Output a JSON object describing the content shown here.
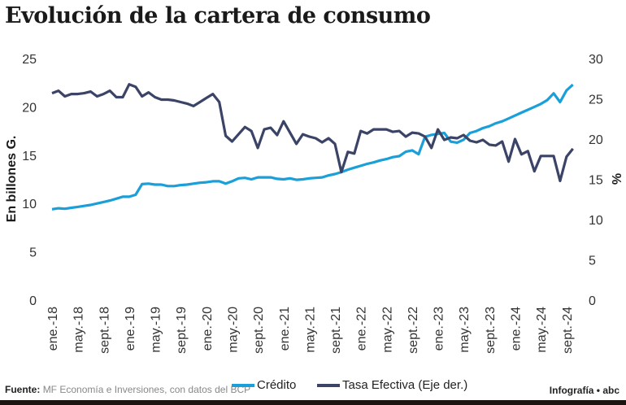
{
  "title": "Evolución de la cartera de consumo",
  "footer": {
    "source_label": "Fuente:",
    "source_text": "MF Economía e Inversiones, con datos del BCP",
    "credit": "Infografía • abc"
  },
  "chart_data": {
    "type": "line",
    "title": "Evolución de la cartera de consumo",
    "ylabel": "En billones G.",
    "ylabel_right": "%",
    "ylim": [
      0,
      25
    ],
    "ylim_right": [
      0,
      30
    ],
    "yticks": [
      "0",
      "5",
      "10",
      "15",
      "20",
      "25"
    ],
    "yticks_right": [
      "0",
      "5",
      "10",
      "15",
      "20",
      "25",
      "30"
    ],
    "x_tick_labels": [
      "ene.-18",
      "may.-18",
      "sept.-18",
      "ene.-19",
      "may.-19",
      "sept.-19",
      "ene.-20",
      "may.-20",
      "sept.-20",
      "ene.-21",
      "may.-21",
      "sept.-21",
      "ene.-22",
      "may.-22",
      "sept.-22",
      "ene.-23",
      "may.-23",
      "sept.-23",
      "ene.-24",
      "may.-24",
      "sept.-24"
    ],
    "x_tick_every_months": 4,
    "grid": false,
    "legend_position": "bottom",
    "series": [
      {
        "name": "Crédito",
        "axis": "left",
        "color": "#1a9fd9",
        "values": [
          9.4,
          9.5,
          9.45,
          9.55,
          9.65,
          9.75,
          9.85,
          10.0,
          10.15,
          10.3,
          10.5,
          10.7,
          10.7,
          10.9,
          12.0,
          12.05,
          11.95,
          11.95,
          11.8,
          11.8,
          11.9,
          11.95,
          12.05,
          12.15,
          12.2,
          12.3,
          12.3,
          12.05,
          12.3,
          12.6,
          12.65,
          12.5,
          12.7,
          12.7,
          12.7,
          12.55,
          12.5,
          12.6,
          12.45,
          12.5,
          12.6,
          12.65,
          12.7,
          12.9,
          13.05,
          13.25,
          13.5,
          13.7,
          13.9,
          14.1,
          14.25,
          14.45,
          14.6,
          14.8,
          14.9,
          15.35,
          15.5,
          15.1,
          16.9,
          17.1,
          17.2,
          17.3,
          16.4,
          16.3,
          16.6,
          17.3,
          17.5,
          17.8,
          18.0,
          18.3,
          18.5,
          18.8,
          19.1,
          19.4,
          19.7,
          20.0,
          20.3,
          20.7,
          21.4,
          20.5,
          21.7,
          22.3
        ]
      },
      {
        "name": "Tasa Efectiva (Eje der.)",
        "axis": "right",
        "color": "#3b4466",
        "values": [
          25.7,
          26.0,
          25.3,
          25.6,
          25.6,
          25.7,
          25.9,
          25.3,
          25.6,
          26.0,
          25.2,
          25.2,
          26.8,
          26.5,
          25.3,
          25.8,
          25.2,
          24.9,
          24.9,
          24.8,
          24.6,
          24.4,
          24.1,
          24.6,
          25.1,
          25.6,
          24.6,
          20.4,
          19.7,
          20.6,
          21.5,
          21.0,
          18.9,
          21.2,
          21.4,
          20.5,
          22.2,
          20.8,
          19.4,
          20.6,
          20.3,
          20.1,
          19.6,
          20.1,
          19.4,
          15.9,
          18.4,
          18.2,
          21.0,
          20.7,
          21.2,
          21.2,
          21.2,
          20.9,
          21.0,
          20.3,
          20.8,
          20.7,
          20.3,
          18.9,
          21.2,
          19.9,
          20.2,
          20.1,
          20.5,
          19.8,
          19.6,
          19.9,
          19.3,
          19.2,
          19.7,
          17.2,
          20.0,
          18.1,
          18.5,
          16.0,
          17.9,
          17.9,
          17.9,
          14.8,
          17.8,
          18.8
        ]
      }
    ]
  }
}
